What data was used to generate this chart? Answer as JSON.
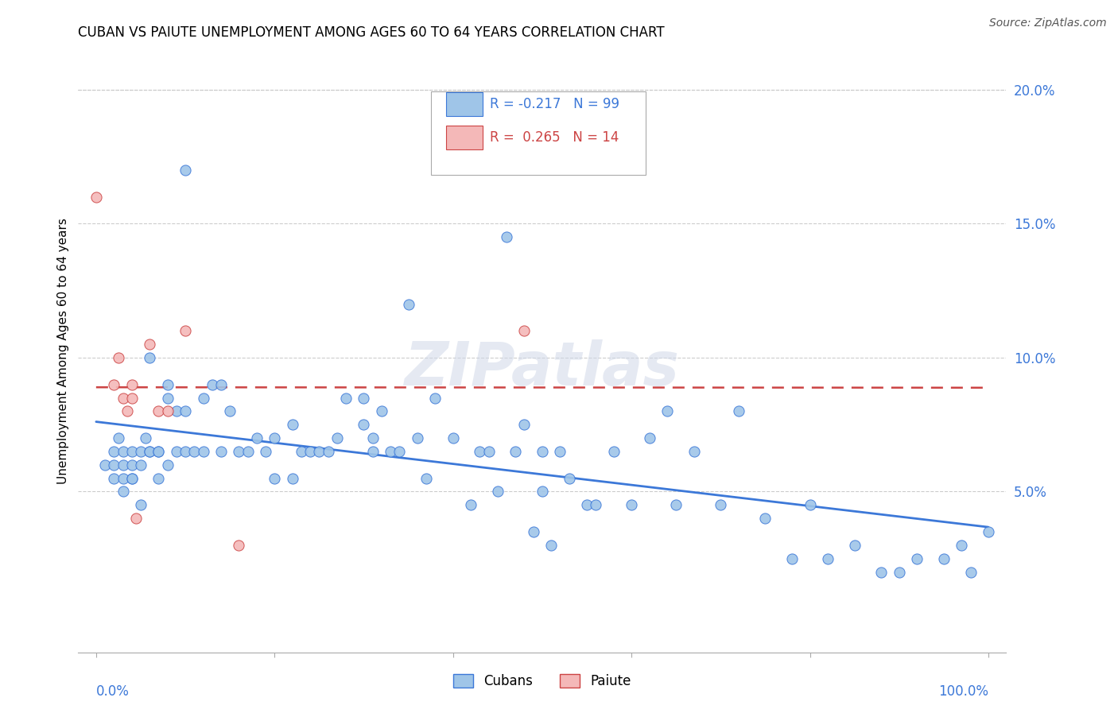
{
  "title": "CUBAN VS PAIUTE UNEMPLOYMENT AMONG AGES 60 TO 64 YEARS CORRELATION CHART",
  "source": "Source: ZipAtlas.com",
  "ylabel": "Unemployment Among Ages 60 to 64 years",
  "ytick_labels": [
    "5.0%",
    "10.0%",
    "15.0%",
    "20.0%"
  ],
  "ytick_values": [
    0.05,
    0.1,
    0.15,
    0.2
  ],
  "xlim": [
    -0.02,
    1.02
  ],
  "ylim": [
    -0.01,
    0.215
  ],
  "legend_cubans": "Cubans",
  "legend_paiute": "Paiute",
  "r_cubans": -0.217,
  "n_cubans": 99,
  "r_paiute": 0.265,
  "n_paiute": 14,
  "cubans_color": "#9fc5e8",
  "paiute_color": "#f4b8b8",
  "trendline_cubans_color": "#3c78d8",
  "trendline_paiute_color": "#cc4444",
  "watermark": "ZIPatlas",
  "cubans_x": [
    0.01,
    0.02,
    0.02,
    0.02,
    0.025,
    0.03,
    0.03,
    0.03,
    0.03,
    0.04,
    0.04,
    0.04,
    0.04,
    0.05,
    0.05,
    0.05,
    0.055,
    0.06,
    0.06,
    0.06,
    0.07,
    0.07,
    0.07,
    0.08,
    0.08,
    0.08,
    0.09,
    0.09,
    0.1,
    0.1,
    0.1,
    0.11,
    0.12,
    0.12,
    0.13,
    0.14,
    0.14,
    0.15,
    0.16,
    0.17,
    0.18,
    0.19,
    0.2,
    0.2,
    0.22,
    0.22,
    0.23,
    0.24,
    0.25,
    0.26,
    0.27,
    0.28,
    0.3,
    0.3,
    0.31,
    0.31,
    0.32,
    0.33,
    0.34,
    0.35,
    0.36,
    0.37,
    0.38,
    0.4,
    0.42,
    0.43,
    0.44,
    0.45,
    0.46,
    0.47,
    0.48,
    0.49,
    0.5,
    0.5,
    0.51,
    0.52,
    0.53,
    0.55,
    0.56,
    0.58,
    0.6,
    0.62,
    0.64,
    0.65,
    0.67,
    0.7,
    0.72,
    0.75,
    0.78,
    0.8,
    0.82,
    0.85,
    0.88,
    0.9,
    0.92,
    0.95,
    0.97,
    0.98,
    1.0
  ],
  "cubans_y": [
    0.06,
    0.06,
    0.065,
    0.055,
    0.07,
    0.055,
    0.06,
    0.065,
    0.05,
    0.06,
    0.055,
    0.055,
    0.065,
    0.065,
    0.06,
    0.045,
    0.07,
    0.1,
    0.065,
    0.065,
    0.055,
    0.065,
    0.065,
    0.09,
    0.085,
    0.06,
    0.08,
    0.065,
    0.08,
    0.065,
    0.17,
    0.065,
    0.085,
    0.065,
    0.09,
    0.09,
    0.065,
    0.08,
    0.065,
    0.065,
    0.07,
    0.065,
    0.07,
    0.055,
    0.055,
    0.075,
    0.065,
    0.065,
    0.065,
    0.065,
    0.07,
    0.085,
    0.075,
    0.085,
    0.065,
    0.07,
    0.08,
    0.065,
    0.065,
    0.12,
    0.07,
    0.055,
    0.085,
    0.07,
    0.045,
    0.065,
    0.065,
    0.05,
    0.145,
    0.065,
    0.075,
    0.035,
    0.05,
    0.065,
    0.03,
    0.065,
    0.055,
    0.045,
    0.045,
    0.065,
    0.045,
    0.07,
    0.08,
    0.045,
    0.065,
    0.045,
    0.08,
    0.04,
    0.025,
    0.045,
    0.025,
    0.03,
    0.02,
    0.02,
    0.025,
    0.025,
    0.03,
    0.02,
    0.035
  ],
  "paiute_x": [
    0.0,
    0.02,
    0.025,
    0.03,
    0.035,
    0.04,
    0.04,
    0.045,
    0.06,
    0.07,
    0.08,
    0.1,
    0.16,
    0.48
  ],
  "paiute_y": [
    0.16,
    0.09,
    0.1,
    0.085,
    0.08,
    0.085,
    0.09,
    0.04,
    0.105,
    0.08,
    0.08,
    0.11,
    0.03,
    0.11
  ],
  "grid_color": "#cccccc",
  "grid_top_color": "#aaaaaa"
}
